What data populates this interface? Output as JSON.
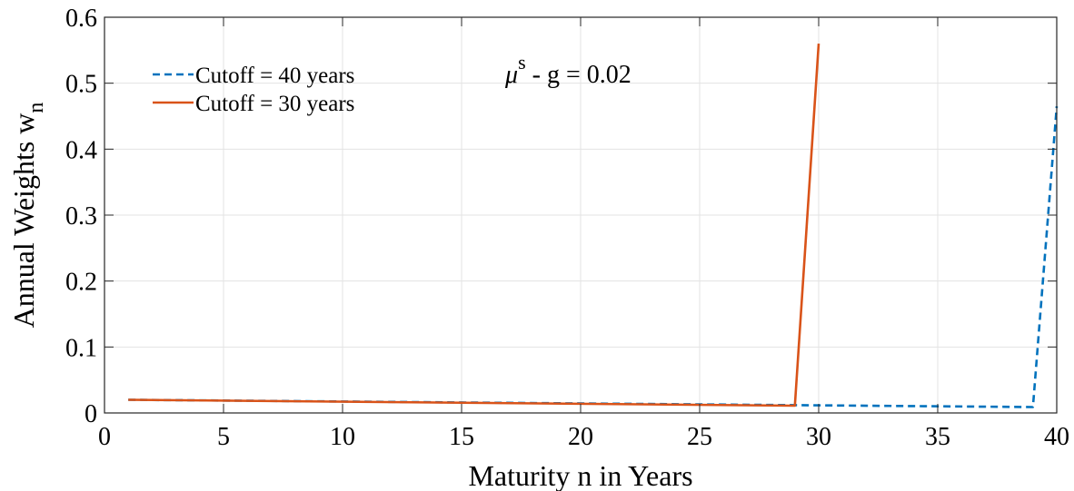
{
  "chart_data": {
    "type": "line",
    "xlabel": "Maturity n in Years",
    "ylabel": {
      "main": "Annual Weights w",
      "subscript": "n"
    },
    "xlim": [
      0,
      40
    ],
    "ylim": [
      0,
      0.6
    ],
    "xticks": [
      "0",
      "5",
      "10",
      "15",
      "20",
      "25",
      "30",
      "35",
      "40"
    ],
    "yticks": [
      "0",
      "0.1",
      "0.2",
      "0.3",
      "0.4",
      "0.5",
      "0.6"
    ],
    "grid": true,
    "legend_position": "top-left",
    "annotation": {
      "symbol": "μ",
      "superscript": "s",
      "rest": " - g = 0.02"
    },
    "series": [
      {
        "name": "Cutoff = 40 years",
        "color": "#0072BD",
        "style": "dashed",
        "x": [
          1,
          39,
          40
        ],
        "y": [
          0.02,
          0.009,
          0.465
        ]
      },
      {
        "name": "Cutoff = 30 years",
        "color": "#D95319",
        "style": "solid",
        "x": [
          1,
          29,
          30
        ],
        "y": [
          0.02,
          0.011,
          0.56
        ]
      }
    ]
  }
}
